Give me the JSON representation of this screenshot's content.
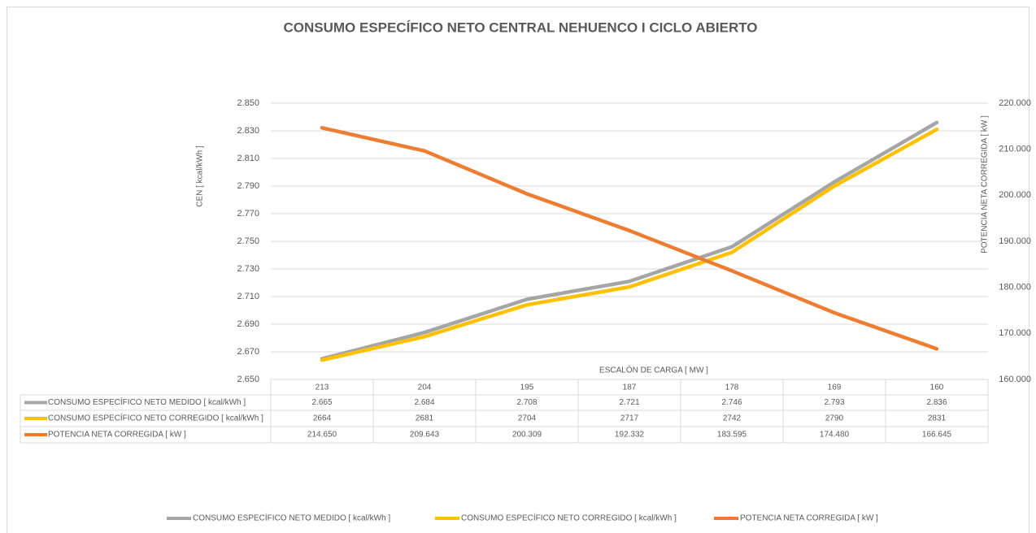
{
  "chart_data": {
    "type": "line",
    "title": "CONSUMO ESPECÍFICO NETO CENTRAL NEHUENCO I CICLO ABIERTO",
    "x_label": "ESCALÓN DE CARGA [ MW ]",
    "y_label": "CEN [ kcal/kWh ]",
    "y2_label": "POTENCIA NETA CORREGIDA [ kW ]",
    "categories": [
      "213",
      "204",
      "195",
      "187",
      "178",
      "169",
      "160"
    ],
    "series": [
      {
        "name": "CONSUMO ESPECÍFICO NETO MEDIDO [ kcal/kWh ]",
        "color": "#a5a5a5",
        "axis": "y",
        "values": [
          2665,
          2684,
          2708,
          2721,
          2746,
          2793,
          2836
        ],
        "value_labels": [
          "2.665",
          "2.684",
          "2.708",
          "2.721",
          "2.746",
          "2.793",
          "2.836"
        ]
      },
      {
        "name": "CONSUMO ESPECÍFICO NETO CORREGIDO [ kcal/kWh ]",
        "color": "#ffc000",
        "axis": "y",
        "values": [
          2664,
          2681,
          2704,
          2717,
          2742,
          2790,
          2831
        ]
      },
      {
        "name": "POTENCIA NETA CORREGIDA [ kW ]",
        "color": "#ed7d31",
        "axis": "y2",
        "values": [
          214650,
          209643,
          200309,
          192332,
          183595,
          174480,
          166645
        ],
        "value_labels": [
          "214.650",
          "209.643",
          "200.309",
          "192.332",
          "183.595",
          "174.480",
          "166.645"
        ]
      }
    ],
    "ylim": [
      2650,
      2850
    ],
    "yticks": [
      {
        "value": 2650,
        "label": "2.650"
      },
      {
        "value": 2670,
        "label": "2.670"
      },
      {
        "value": 2690,
        "label": "2.690"
      },
      {
        "value": 2710,
        "label": "2.710"
      },
      {
        "value": 2730,
        "label": "2.730"
      },
      {
        "value": 2750,
        "label": "2.750"
      },
      {
        "value": 2770,
        "label": "2.770"
      },
      {
        "value": 2790,
        "label": "2.790"
      },
      {
        "value": 2810,
        "label": "2.810"
      },
      {
        "value": 2830,
        "label": "2.830"
      },
      {
        "value": 2850,
        "label": "2.850"
      }
    ],
    "y2lim": [
      160000,
      220000
    ],
    "y2ticks": [
      {
        "value": 160000,
        "label": "160.000"
      },
      {
        "value": 170000,
        "label": "170.000"
      },
      {
        "value": 180000,
        "label": "180.000"
      },
      {
        "value": 190000,
        "label": "190.000"
      },
      {
        "value": 200000,
        "label": "200.000"
      },
      {
        "value": 210000,
        "label": "210.000"
      },
      {
        "value": 220000,
        "label": "220.000"
      }
    ],
    "grid": true,
    "legend": "bottom"
  }
}
